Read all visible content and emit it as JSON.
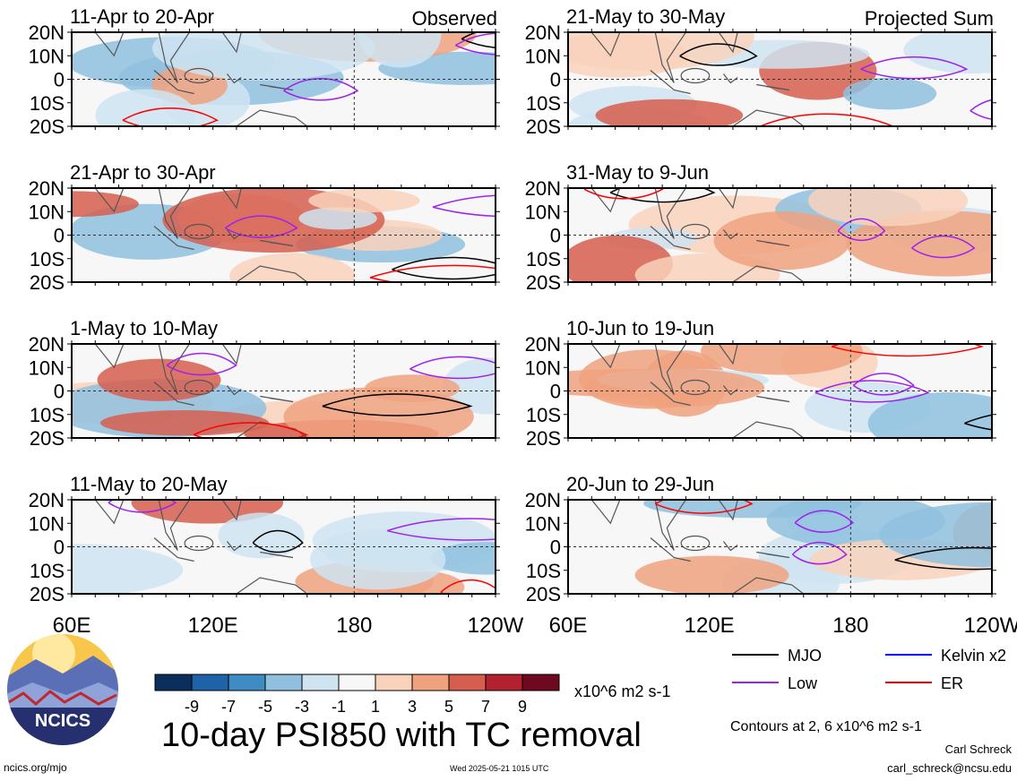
{
  "panels": [
    {
      "id": "p1",
      "label": "11-Apr to 20-Apr",
      "tag": "Observed"
    },
    {
      "id": "p2",
      "label": "21-Apr to 30-Apr",
      "tag": ""
    },
    {
      "id": "p3",
      "label": "1-May to 10-May",
      "tag": ""
    },
    {
      "id": "p4",
      "label": "11-May to 20-May",
      "tag": ""
    },
    {
      "id": "p5",
      "label": "21-May to 30-May",
      "tag": "Projected Sum"
    },
    {
      "id": "p6",
      "label": "31-May to 9-Jun",
      "tag": ""
    },
    {
      "id": "p7",
      "label": "10-Jun to 19-Jun",
      "tag": ""
    },
    {
      "id": "p8",
      "label": "20-Jun to 29-Jun",
      "tag": ""
    }
  ],
  "lat_ticks": [
    "20N",
    "10N",
    "0",
    "10S",
    "20S"
  ],
  "lon_ticks": [
    "60E",
    "120E",
    "180",
    "120W"
  ],
  "colorbar": {
    "tick_labels": [
      "-9",
      "-7",
      "-5",
      "-3",
      "-1",
      "1",
      "3",
      "5",
      "7",
      "9"
    ],
    "colors": [
      "#0b2f5c",
      "#1e62a8",
      "#3f8cc4",
      "#8fc1df",
      "#cfe4f1",
      "#f7f7f7",
      "#f9d2bc",
      "#f0a27f",
      "#d65e4e",
      "#b3202e",
      "#6d0a20"
    ],
    "units": "x10^6 m2 s-1"
  },
  "legend": [
    {
      "label": "MJO",
      "color": "#000000"
    },
    {
      "label": "Kelvin x2",
      "color": "#0000ff"
    },
    {
      "label": "Low",
      "color": "#a020f0"
    },
    {
      "label": "ER",
      "color": "#ff0000"
    }
  ],
  "title": "10-day PSI850 with TC removal",
  "contours_note": "Contours at 2, 6 x10^6 m2 s-1",
  "author": "Carl Schreck",
  "email": "carl_schreck@ncsu.edu",
  "site": "ncics.org/mjo",
  "timestamp": "Wed 2025-05-21 1015 UTC",
  "logo_text": "NCICS",
  "chart_data": {
    "type": "heatmap",
    "variable": "PSI850 anomaly",
    "units": "x10^6 m2 s-1",
    "x_range": [
      "60E",
      "120W"
    ],
    "y_range": [
      "20S",
      "20N"
    ],
    "contour_levels": [
      2,
      6
    ]
  }
}
